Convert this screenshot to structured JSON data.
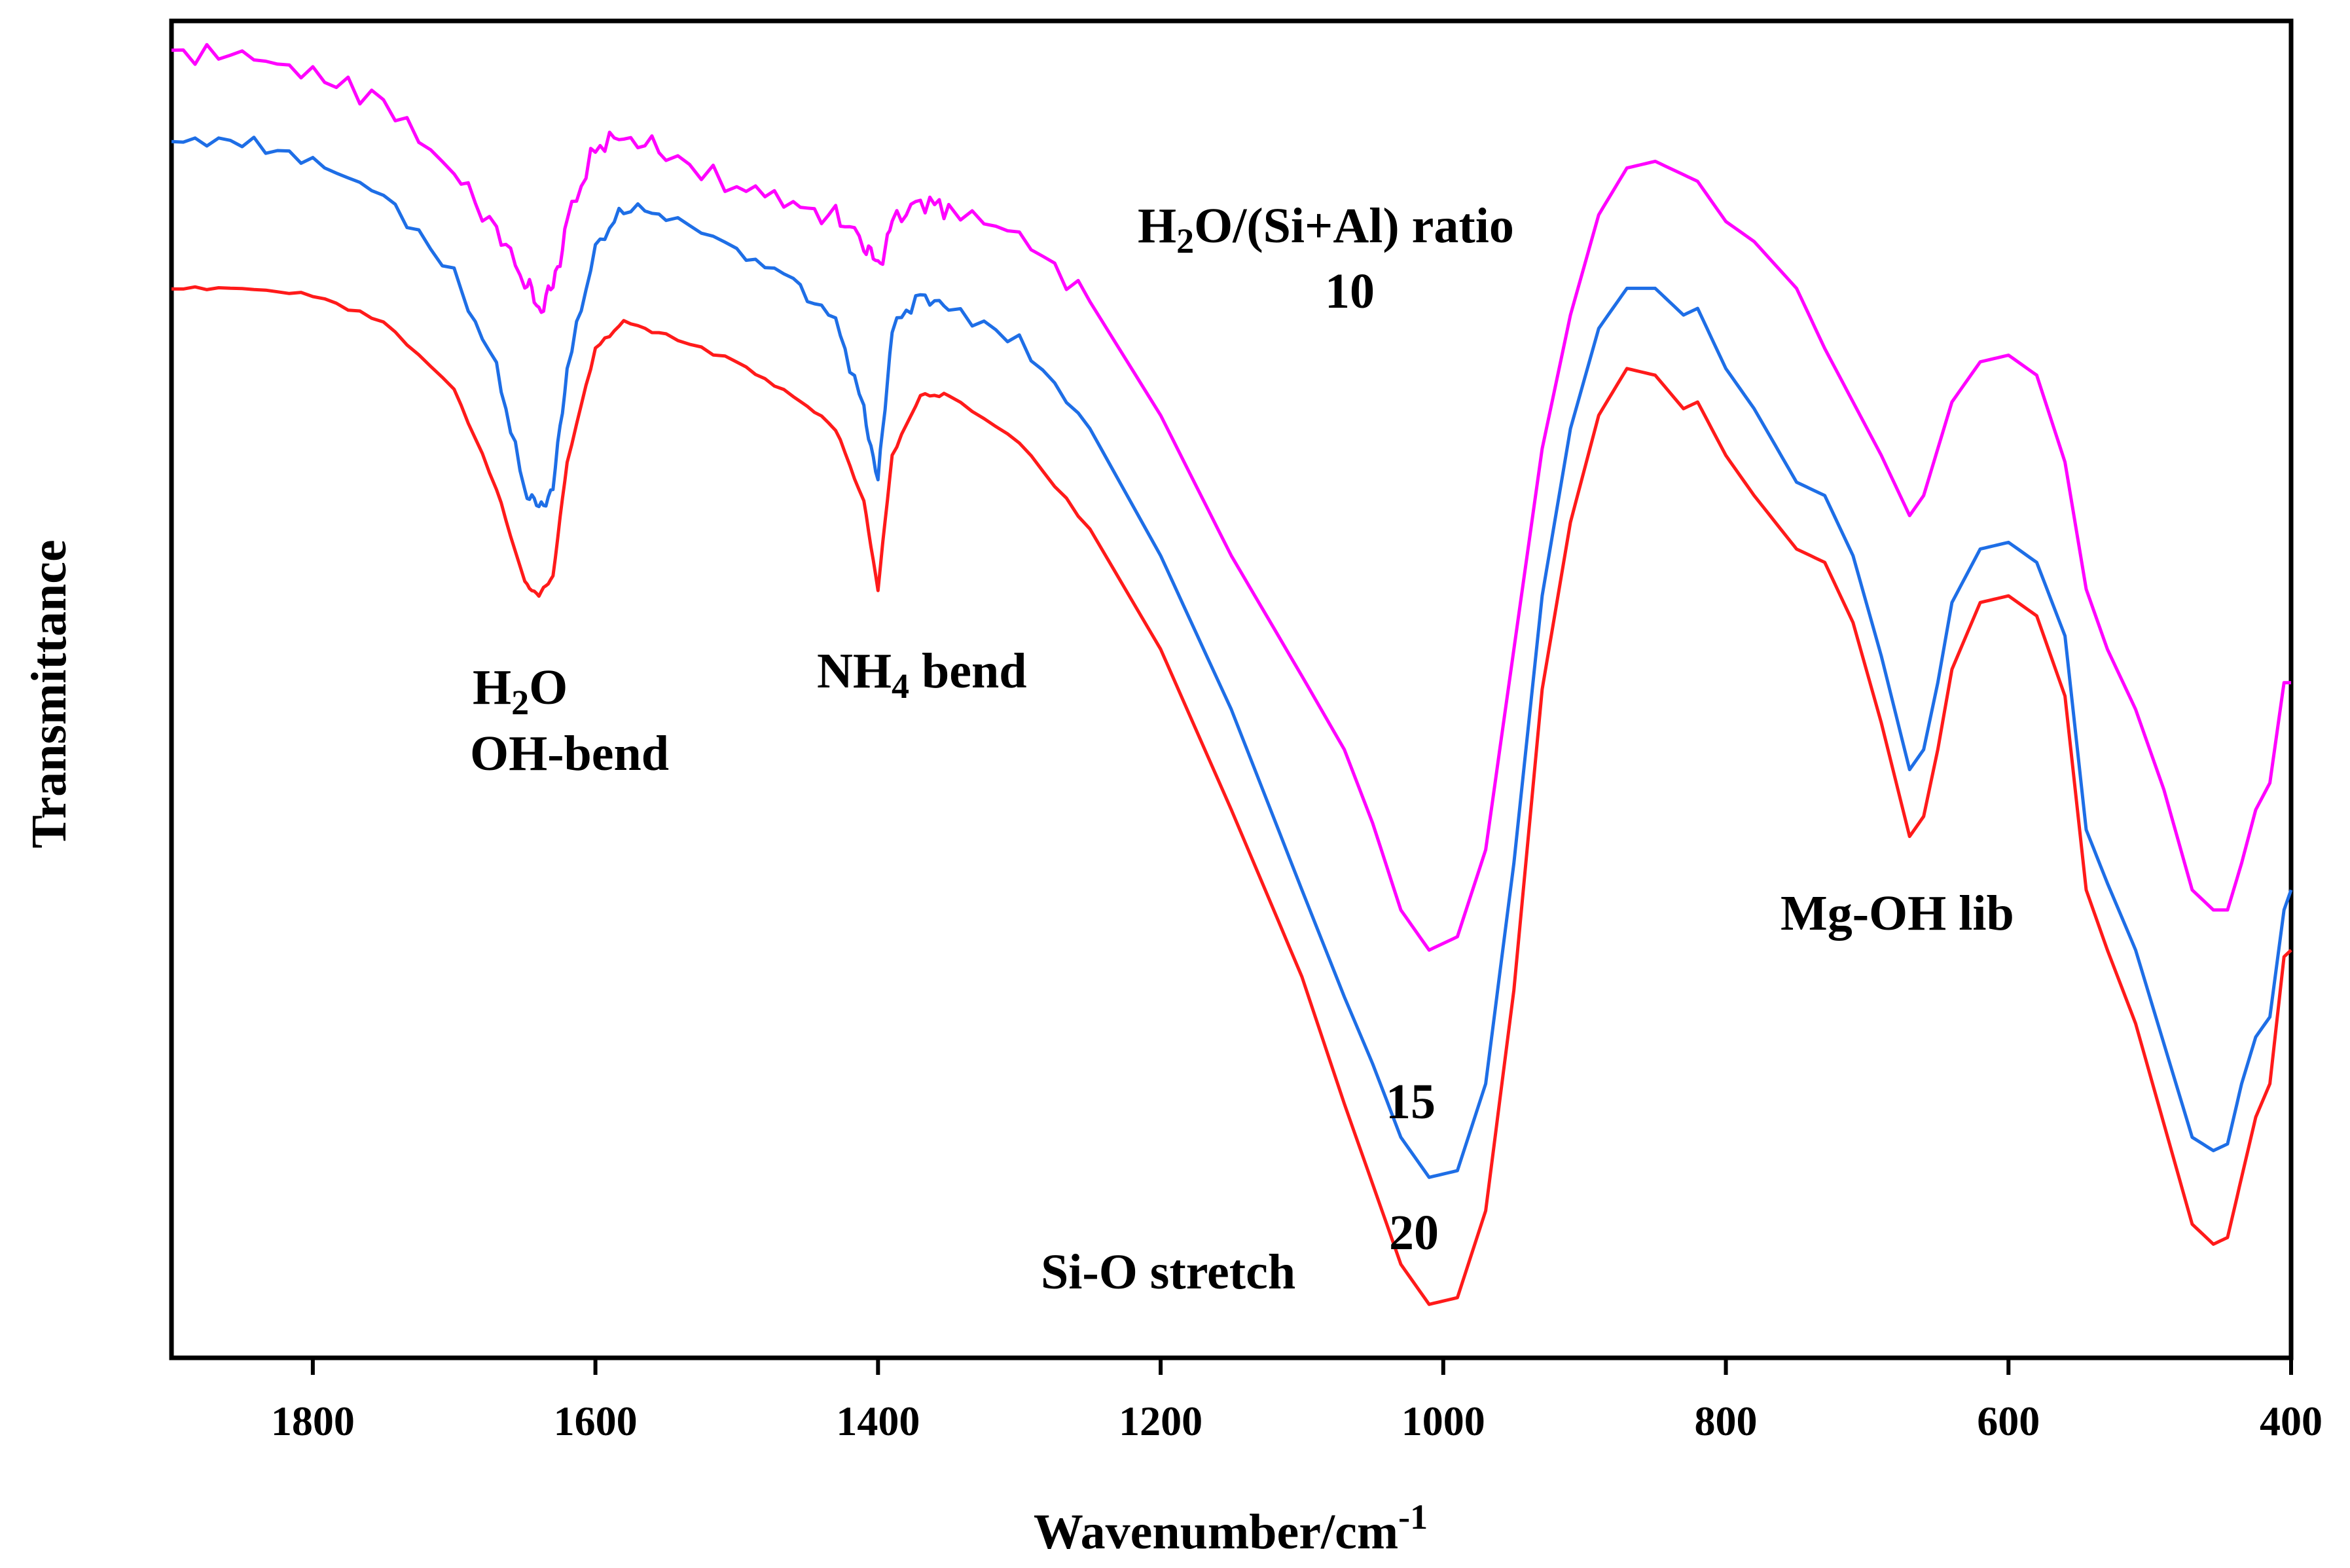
{
  "chart_data": {
    "type": "line",
    "title": "",
    "xlabel": "Wavenumber/cm",
    "xlabel_superscript": "-1",
    "ylabel": "Transmittance",
    "xlim": [
      1900,
      400
    ],
    "ylim": [
      0,
      100
    ],
    "x_ticks": [
      1800,
      1600,
      1400,
      1200,
      1000,
      800,
      600,
      400
    ],
    "y_ticks": [],
    "grid": false,
    "legend": "none",
    "colors": {
      "ratio_10": "#ff00ff",
      "ratio_15": "#1e6ee6",
      "ratio_20": "#ff1a1a",
      "axis": "#000000"
    },
    "series": [
      {
        "name": "10",
        "color": "#ff00ff",
        "x": [
          1900,
          1850,
          1800,
          1750,
          1700,
          1670,
          1650,
          1640,
          1630,
          1620,
          1600,
          1580,
          1550,
          1500,
          1460,
          1430,
          1410,
          1400,
          1390,
          1370,
          1350,
          1300,
          1250,
          1200,
          1150,
          1100,
          1070,
          1050,
          1030,
          1010,
          990,
          970,
          950,
          930,
          910,
          890,
          870,
          850,
          830,
          820,
          800,
          780,
          750,
          730,
          710,
          690,
          670,
          660,
          650,
          640,
          620,
          600,
          580,
          560,
          545,
          530,
          510,
          490,
          470,
          455,
          445,
          435,
          425,
          415,
          405,
          400
        ],
        "values": [
          97.5,
          97.5,
          96.0,
          94.0,
          88.5,
          84.5,
          80.5,
          78.5,
          80.0,
          85.0,
          90.5,
          91.5,
          90.0,
          87.5,
          86.0,
          85.5,
          83.5,
          81.5,
          85.0,
          86.5,
          86.0,
          84.0,
          79.0,
          70.5,
          60.0,
          51.0,
          45.5,
          40.0,
          33.5,
          30.5,
          31.5,
          38.0,
          53.0,
          68.0,
          78.0,
          85.5,
          89.0,
          89.5,
          88.5,
          88.0,
          85.0,
          83.5,
          80.0,
          75.5,
          71.5,
          67.5,
          63.0,
          64.5,
          68.0,
          71.5,
          74.5,
          75.0,
          73.5,
          67.0,
          57.5,
          53.0,
          48.5,
          42.5,
          35.0,
          33.5,
          33.5,
          37.0,
          41.0,
          43.0,
          50.5,
          50.5
        ]
      },
      {
        "name": "15",
        "color": "#1e6ee6",
        "x": [
          1900,
          1850,
          1800,
          1750,
          1700,
          1670,
          1650,
          1640,
          1630,
          1620,
          1600,
          1580,
          1550,
          1500,
          1460,
          1430,
          1410,
          1400,
          1390,
          1370,
          1350,
          1300,
          1250,
          1200,
          1150,
          1100,
          1070,
          1050,
          1030,
          1010,
          990,
          970,
          950,
          930,
          910,
          890,
          870,
          850,
          830,
          820,
          800,
          780,
          750,
          730,
          710,
          690,
          670,
          660,
          650,
          640,
          620,
          600,
          580,
          560,
          545,
          530,
          510,
          490,
          470,
          455,
          445,
          435,
          425,
          415,
          405,
          400
        ],
        "values": [
          91.0,
          91.0,
          89.5,
          87.0,
          81.0,
          74.0,
          65.0,
          63.5,
          65.0,
          74.0,
          83.0,
          86.0,
          85.5,
          83.0,
          80.5,
          77.5,
          71.0,
          65.5,
          77.0,
          79.5,
          78.5,
          76.0,
          69.5,
          60.0,
          48.5,
          35.0,
          27.0,
          22.0,
          16.5,
          13.5,
          14.0,
          20.5,
          37.0,
          57.0,
          69.5,
          77.0,
          80.0,
          80.0,
          78.0,
          78.5,
          74.0,
          71.0,
          65.5,
          64.5,
          60.0,
          52.5,
          44.0,
          45.5,
          50.5,
          56.5,
          60.5,
          61.0,
          59.5,
          54.0,
          39.5,
          35.5,
          30.5,
          23.5,
          16.5,
          15.5,
          16.0,
          20.5,
          24.0,
          25.5,
          33.5,
          35.0
        ]
      },
      {
        "name": "20",
        "color": "#ff1a1a",
        "x": [
          1900,
          1850,
          1800,
          1750,
          1700,
          1670,
          1650,
          1640,
          1630,
          1620,
          1600,
          1580,
          1550,
          1500,
          1460,
          1430,
          1410,
          1400,
          1390,
          1370,
          1350,
          1300,
          1250,
          1200,
          1150,
          1100,
          1070,
          1050,
          1030,
          1010,
          990,
          970,
          950,
          930,
          910,
          890,
          870,
          850,
          830,
          820,
          800,
          780,
          750,
          730,
          710,
          690,
          670,
          660,
          650,
          640,
          620,
          600,
          580,
          560,
          545,
          530,
          510,
          490,
          470,
          455,
          445,
          435,
          425,
          415,
          405,
          400
        ],
        "values": [
          80.0,
          80.0,
          79.5,
          77.5,
          72.5,
          65.0,
          58.0,
          57.0,
          58.5,
          67.0,
          75.5,
          77.5,
          76.5,
          74.5,
          72.0,
          69.5,
          64.0,
          57.5,
          67.5,
          72.0,
          72.0,
          68.5,
          62.0,
          53.0,
          41.0,
          28.5,
          19.0,
          13.0,
          7.0,
          4.0,
          4.5,
          11.0,
          27.5,
          50.0,
          62.5,
          70.5,
          74.0,
          73.5,
          71.0,
          71.5,
          67.5,
          64.5,
          60.5,
          59.5,
          55.0,
          47.5,
          39.0,
          40.5,
          45.5,
          51.5,
          56.5,
          57.0,
          55.5,
          49.5,
          35.0,
          30.5,
          25.0,
          17.5,
          10.0,
          8.5,
          9.0,
          13.5,
          18.0,
          20.5,
          30.0,
          30.5
        ]
      }
    ],
    "annotations": [
      {
        "id": "h2o",
        "line1_prefix": "H",
        "line1_sub": "2",
        "line1_suffix": "O",
        "line2": "OH-bend",
        "x": 1640,
        "y": 46
      },
      {
        "id": "nh4",
        "prefix": "NH",
        "sub": "4",
        "suffix": " bend",
        "x": 1465,
        "y": 50
      },
      {
        "id": "ratio",
        "prefix": "H",
        "sub": "2",
        "suffix": "O/(Si+Al) ratio",
        "value": "10",
        "x": 970,
        "y": 84
      },
      {
        "id": "label15",
        "text": "15",
        "x": 1020,
        "y": 18.5
      },
      {
        "id": "label20",
        "text": "20",
        "x": 1020,
        "y": 8.0
      },
      {
        "id": "sio",
        "text": "Si-O stretch",
        "x": 1190,
        "y": 5.5
      },
      {
        "id": "mgoh",
        "text": "Mg-OH lib",
        "x": 718,
        "y": 32.5
      }
    ]
  }
}
